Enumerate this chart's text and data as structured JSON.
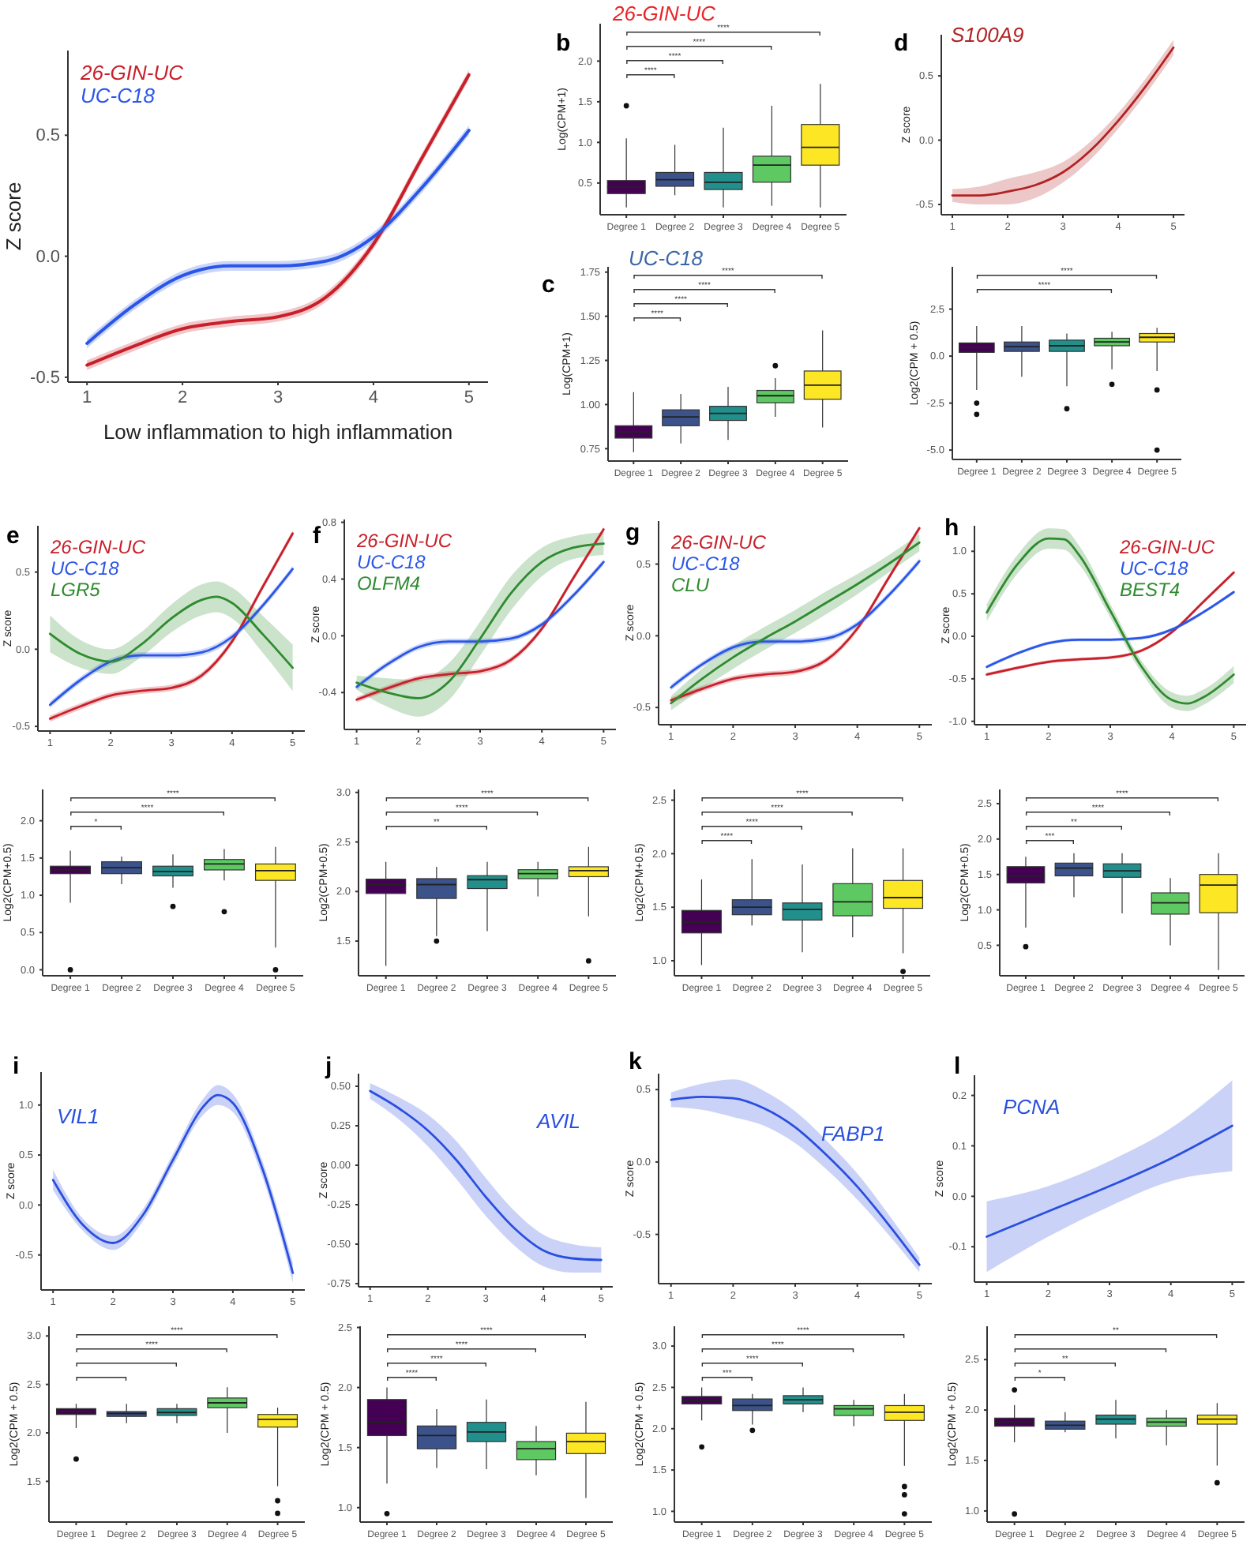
{
  "chart_data": [
    {
      "type": "line",
      "xlabel": "Low inflammation to high inflammation",
      "ylabel": "Z score",
      "legend": "top left",
      "x": [
        1,
        1.5,
        2,
        2.5,
        3,
        3.5,
        4,
        4.5,
        5
      ],
      "xlim": [
        0.8,
        5.2
      ],
      "ylim": [
        -0.52,
        0.85
      ],
      "xticks": [
        1,
        2,
        3,
        4,
        5
      ],
      "yticks": [
        -0.5,
        {
          "value": 0,
          "label": "0.0"
        },
        0.5
      ],
      "series": [
        {
          "name": "26-GIN-UC",
          "color": "#c8202a",
          "values": [
            -0.45,
            -0.37,
            -0.3,
            -0.27,
            -0.25,
            -0.17,
            0.05,
            0.4,
            0.75
          ],
          "lower": [
            -0.47,
            -0.39,
            -0.32,
            -0.29,
            -0.27,
            -0.19,
            0.03,
            0.38,
            0.73
          ],
          "upper": [
            -0.43,
            -0.35,
            -0.28,
            -0.25,
            -0.23,
            -0.15,
            0.07,
            0.42,
            0.77
          ]
        },
        {
          "name": "UC-C18",
          "color": "#2a56e8",
          "values": [
            -0.36,
            -0.2,
            -0.08,
            -0.04,
            -0.04,
            -0.02,
            0.08,
            0.28,
            0.52
          ],
          "lower": [
            -0.38,
            -0.22,
            -0.1,
            -0.06,
            -0.06,
            -0.04,
            0.06,
            0.26,
            0.5
          ],
          "upper": [
            -0.34,
            -0.18,
            -0.06,
            -0.02,
            -0.02,
            0,
            0.1,
            0.3,
            0.54
          ]
        }
      ]
    },
    {
      "type": "box",
      "title": "26-GIN-UC",
      "ylabel": "Log(CPM+1)",
      "categories": [
        "Degree 1",
        "Degree 2",
        "Degree 3",
        "Degree 4",
        "Degree 5"
      ],
      "colors": [
        "#440154",
        "#3b528b",
        "#21908c",
        "#5ec962",
        "#fde725"
      ],
      "ylim": [
        0.11,
        2.46
      ],
      "yticks": [
        0.5,
        {
          "value": 1,
          "label": "1.0"
        },
        1.5,
        {
          "value": 2,
          "label": "2.0"
        }
      ],
      "boxes": [
        {
          "low": 0.2,
          "q1": 0.37,
          "median": 0.45,
          "q3": 0.53,
          "high": 1.05,
          "outliers": [
            1.45
          ]
        },
        {
          "low": 0.35,
          "q1": 0.46,
          "median": 0.54,
          "q3": 0.63,
          "high": 0.97
        },
        {
          "low": 0.2,
          "q1": 0.42,
          "median": 0.51,
          "q3": 0.63,
          "high": 1.18
        },
        {
          "low": 0.22,
          "q1": 0.51,
          "median": 0.72,
          "q3": 0.83,
          "high": 1.45
        },
        {
          "low": 0.2,
          "q1": 0.72,
          "median": 0.94,
          "q3": 1.22,
          "high": 1.72
        }
      ],
      "annotations": [
        "b",
        "****",
        "****",
        "****",
        "****"
      ]
    },
    {
      "type": "box",
      "title": "UC-C18",
      "ylabel": "Log(CPM+1)",
      "categories": [
        "Degree 1",
        "Degree 2",
        "Degree 3",
        "Degree 4",
        "Degree 5"
      ],
      "colors": [
        "#440154",
        "#3b528b",
        "#21908c",
        "#5ec962",
        "#fde725"
      ],
      "ylim": [
        0.68,
        1.78
      ],
      "yticks": [
        0.75,
        {
          "value": 1,
          "label": "1.00"
        },
        1.25,
        {
          "value": 1.5,
          "label": "1.50"
        },
        1.75
      ],
      "boxes": [
        {
          "low": 0.73,
          "q1": 0.81,
          "median": 0.845,
          "q3": 0.88,
          "high": 1.07
        },
        {
          "low": 0.78,
          "q1": 0.88,
          "median": 0.93,
          "q3": 0.97,
          "high": 1.06
        },
        {
          "low": 0.8,
          "q1": 0.91,
          "median": 0.95,
          "q3": 0.99,
          "high": 1.1
        },
        {
          "low": 0.93,
          "q1": 1.01,
          "median": 1.05,
          "q3": 1.08,
          "high": 1.15,
          "outliers": [
            1.22
          ]
        },
        {
          "low": 0.87,
          "q1": 1.03,
          "median": 1.11,
          "q3": 1.19,
          "high": 1.42
        }
      ],
      "annotations": [
        "c",
        "****",
        "****",
        "****",
        "****"
      ]
    },
    {
      "type": "line",
      "ylabel": "Z score",
      "legend": "top left",
      "x": [
        1,
        1.5,
        2,
        2.5,
        3,
        3.5,
        4,
        4.5,
        5
      ],
      "xlim": [
        0.8,
        5.2
      ],
      "ylim": [
        -0.58,
        0.82
      ],
      "xticks": [
        1,
        2,
        3,
        4,
        5
      ],
      "yticks": [
        -0.5,
        {
          "value": 0,
          "label": "0.0"
        },
        0.5
      ],
      "series": [
        {
          "name": "S100A9",
          "color": "#b22222",
          "values": [
            -0.43,
            -0.43,
            -0.4,
            -0.35,
            -0.25,
            -0.08,
            0.15,
            0.42,
            0.72
          ],
          "lower": [
            -0.48,
            -0.5,
            -0.5,
            -0.45,
            -0.33,
            -0.15,
            0.09,
            0.36,
            0.66
          ],
          "upper": [
            -0.38,
            -0.36,
            -0.3,
            -0.25,
            -0.17,
            -0.01,
            0.21,
            0.48,
            0.78
          ]
        }
      ],
      "annotations": [
        "d"
      ]
    },
    {
      "type": "box",
      "ylabel": "Log2(CPM + 0.5)",
      "categories": [
        "Degree 1",
        "Degree 2",
        "Degree 3",
        "Degree 4",
        "Degree 5"
      ],
      "colors": [
        "#440154",
        "#3b528b",
        "#21908c",
        "#5ec962",
        "#fde725"
      ],
      "ylim": [
        -5.5,
        4.75
      ],
      "yticks": [
        {
          "value": -5,
          "label": "-5.0"
        },
        -2.5,
        {
          "value": 0,
          "label": "0.0"
        },
        2.5
      ],
      "boxes": [
        {
          "low": -1.8,
          "q1": 0.2,
          "median": 0.45,
          "q3": 0.7,
          "high": 1.6,
          "outliers": [
            -3.1,
            -2.5
          ]
        },
        {
          "low": -1.1,
          "q1": 0.25,
          "median": 0.5,
          "q3": 0.75,
          "high": 1.6
        },
        {
          "low": -1.6,
          "q1": 0.25,
          "median": 0.55,
          "q3": 0.85,
          "high": 1.2,
          "outliers": [
            -2.8
          ]
        },
        {
          "low": -0.7,
          "q1": 0.55,
          "median": 0.75,
          "q3": 0.95,
          "high": 1.3,
          "outliers": [
            -1.5
          ]
        },
        {
          "low": -0.8,
          "q1": 0.75,
          "median": 1,
          "q3": 1.2,
          "high": 1.5,
          "outliers": [
            -1.8,
            -5
          ]
        }
      ],
      "annotations": [
        "****",
        "****"
      ]
    },
    {
      "type": "line",
      "ylabel": "Z score",
      "legend": "top left",
      "x": [
        1,
        1.5,
        2,
        2.5,
        3,
        3.5,
        4,
        4.5,
        5
      ],
      "xlim": [
        0.8,
        5.2
      ],
      "ylim": [
        -0.53,
        0.8
      ],
      "xticks": [
        1,
        2,
        3,
        4,
        5
      ],
      "yticks": [
        -0.5,
        {
          "value": 0,
          "label": "0.0"
        },
        0.5
      ],
      "series": [
        {
          "name": "26-GIN-UC",
          "color": "#c8202a",
          "values": [
            -0.45,
            -0.37,
            -0.3,
            -0.27,
            -0.25,
            -0.17,
            0.05,
            0.4,
            0.75
          ],
          "lower": [
            -0.47,
            -0.39,
            -0.32,
            -0.29,
            -0.27,
            -0.19,
            0.03,
            0.38,
            0.73
          ],
          "upper": [
            -0.43,
            -0.35,
            -0.28,
            -0.25,
            -0.23,
            -0.15,
            0.07,
            0.42,
            0.77
          ]
        },
        {
          "name": "UC-C18",
          "color": "#2a56e8",
          "values": [
            -0.36,
            -0.2,
            -0.08,
            -0.04,
            -0.04,
            -0.02,
            0.08,
            0.28,
            0.52
          ],
          "lower": [
            -0.38,
            -0.22,
            -0.1,
            -0.06,
            -0.06,
            -0.04,
            0.06,
            0.26,
            0.5
          ],
          "upper": [
            -0.34,
            -0.18,
            -0.06,
            -0.02,
            -0.02,
            0,
            0.1,
            0.3,
            0.54
          ]
        },
        {
          "name": "LGR5",
          "color": "#2e8b2e",
          "x": [
            1,
            1.5,
            2,
            2.5,
            3,
            3.5,
            3.75,
            4,
            4.5,
            5
          ],
          "values": [
            0.1,
            -0.03,
            -0.08,
            0.03,
            0.2,
            0.32,
            0.34,
            0.3,
            0.1,
            -0.12
          ],
          "lower": [
            -0.02,
            -0.12,
            -0.16,
            -0.05,
            0.11,
            0.22,
            0.24,
            0.2,
            -0.02,
            -0.27
          ],
          "upper": [
            0.22,
            0.06,
            0,
            0.11,
            0.29,
            0.42,
            0.44,
            0.4,
            0.22,
            0.03
          ]
        }
      ],
      "annotations": [
        "e"
      ]
    },
    {
      "type": "box",
      "ylabel": "Log2(CPM+0.5)",
      "categories": [
        "Degree 1",
        "Degree 2",
        "Degree 3",
        "Degree 4",
        "Degree 5"
      ],
      "colors": [
        "#440154",
        "#3b528b",
        "#21908c",
        "#5ec962",
        "#fde725"
      ],
      "ylim": [
        -0.08,
        2.42
      ],
      "yticks": [
        {
          "value": 0,
          "label": "0.0"
        },
        0.5,
        {
          "value": 1,
          "label": "1.0"
        },
        1.5,
        {
          "value": 2,
          "label": "2.0"
        }
      ],
      "boxes": [
        {
          "low": 0.9,
          "q1": 1.29,
          "median": 1.34,
          "q3": 1.39,
          "high": 1.6,
          "outliers": [
            0
          ]
        },
        {
          "low": 1.15,
          "q1": 1.29,
          "median": 1.37,
          "q3": 1.45,
          "high": 1.52
        },
        {
          "low": 1.1,
          "q1": 1.26,
          "median": 1.32,
          "q3": 1.39,
          "high": 1.55,
          "outliers": [
            0.85
          ]
        },
        {
          "low": 1.2,
          "q1": 1.34,
          "median": 1.42,
          "q3": 1.48,
          "high": 1.62,
          "outliers": [
            0.78
          ]
        },
        {
          "low": 0.3,
          "q1": 1.2,
          "median": 1.33,
          "q3": 1.42,
          "high": 1.65,
          "outliers": [
            0
          ]
        }
      ],
      "annotations": [
        "*",
        "****",
        "****"
      ]
    },
    {
      "type": "line",
      "ylabel": "Z score",
      "legend": "top left",
      "x": [
        1,
        1.5,
        2,
        2.5,
        3,
        3.5,
        4,
        4.5,
        5
      ],
      "xlim": [
        0.8,
        5.2
      ],
      "ylim": [
        -0.66,
        0.82
      ],
      "xticks": [
        1,
        2,
        3,
        4,
        5
      ],
      "yticks": [
        -0.4,
        {
          "value": 0,
          "label": "0.0"
        },
        0.4,
        0.8
      ],
      "series": [
        {
          "name": "26-GIN-UC",
          "color": "#c8202a",
          "values": [
            -0.45,
            -0.37,
            -0.3,
            -0.27,
            -0.25,
            -0.17,
            0.05,
            0.4,
            0.75
          ],
          "lower": [
            -0.47,
            -0.39,
            -0.32,
            -0.29,
            -0.27,
            -0.19,
            0.03,
            0.38,
            0.73
          ],
          "upper": [
            -0.43,
            -0.35,
            -0.28,
            -0.25,
            -0.23,
            -0.15,
            0.07,
            0.42,
            0.77
          ]
        },
        {
          "name": "UC-C18",
          "color": "#2a56e8",
          "values": [
            -0.36,
            -0.2,
            -0.08,
            -0.04,
            -0.04,
            -0.02,
            0.08,
            0.28,
            0.52
          ],
          "lower": [
            -0.38,
            -0.22,
            -0.1,
            -0.06,
            -0.06,
            -0.04,
            0.06,
            0.26,
            0.5
          ],
          "upper": [
            -0.34,
            -0.18,
            -0.06,
            -0.02,
            -0.02,
            0,
            0.1,
            0.3,
            0.54
          ]
        },
        {
          "name": "OLFM4",
          "color": "#2e8b2e",
          "values": [
            -0.33,
            -0.4,
            -0.44,
            -0.32,
            -0.02,
            0.3,
            0.52,
            0.62,
            0.65
          ],
          "lower": [
            -0.38,
            -0.5,
            -0.57,
            -0.45,
            -0.14,
            0.18,
            0.42,
            0.54,
            0.57
          ],
          "upper": [
            -0.28,
            -0.3,
            -0.31,
            -0.19,
            0.1,
            0.42,
            0.62,
            0.7,
            0.73
          ]
        }
      ],
      "annotations": [
        "f"
      ]
    },
    {
      "type": "box",
      "ylabel": "Log2(CPM+0.5)",
      "categories": [
        "Degree 1",
        "Degree 2",
        "Degree 3",
        "Degree 4",
        "Degree 5"
      ],
      "colors": [
        "#440154",
        "#3b528b",
        "#21908c",
        "#5ec962",
        "#fde725"
      ],
      "ylim": [
        1.15,
        3.03
      ],
      "yticks": [
        1.5,
        {
          "value": 2,
          "label": "2.0"
        },
        2.5,
        {
          "value": 3,
          "label": "3.0"
        }
      ],
      "boxes": [
        {
          "low": 1.25,
          "q1": 1.98,
          "median": 2.07,
          "q3": 2.125,
          "high": 2.3
        },
        {
          "low": 1.55,
          "q1": 1.93,
          "median": 2.07,
          "q3": 2.13,
          "high": 2.25,
          "outliers": [
            1.5
          ]
        },
        {
          "low": 1.6,
          "q1": 2.03,
          "median": 2.12,
          "q3": 2.16,
          "high": 2.3
        },
        {
          "low": 1.95,
          "q1": 2.13,
          "median": 2.18,
          "q3": 2.22,
          "high": 2.3
        },
        {
          "low": 1.75,
          "q1": 2.15,
          "median": 2.21,
          "q3": 2.25,
          "high": 2.45,
          "outliers": [
            1.3
          ]
        }
      ],
      "annotations": [
        "**",
        "****",
        "****"
      ]
    },
    {
      "type": "line",
      "ylabel": "Z score",
      "legend": "top left",
      "x": [
        1,
        1.5,
        2,
        2.5,
        3,
        3.5,
        4,
        4.5,
        5
      ],
      "xlim": [
        0.8,
        5.2
      ],
      "ylim": [
        -0.62,
        0.8
      ],
      "xticks": [
        1,
        2,
        3,
        4,
        5
      ],
      "yticks": [
        -0.5,
        {
          "value": 0,
          "label": "0.0"
        },
        0.5
      ],
      "series": [
        {
          "name": "26-GIN-UC",
          "color": "#c8202a",
          "values": [
            -0.45,
            -0.37,
            -0.3,
            -0.27,
            -0.25,
            -0.17,
            0.05,
            0.4,
            0.75
          ],
          "lower": [
            -0.47,
            -0.39,
            -0.32,
            -0.29,
            -0.27,
            -0.19,
            0.03,
            0.38,
            0.73
          ],
          "upper": [
            -0.43,
            -0.35,
            -0.28,
            -0.25,
            -0.23,
            -0.15,
            0.07,
            0.42,
            0.77
          ]
        },
        {
          "name": "UC-C18",
          "color": "#2a56e8",
          "values": [
            -0.36,
            -0.2,
            -0.08,
            -0.04,
            -0.04,
            -0.02,
            0.08,
            0.28,
            0.52
          ],
          "lower": [
            -0.38,
            -0.22,
            -0.1,
            -0.06,
            -0.06,
            -0.04,
            0.06,
            0.26,
            0.5
          ],
          "upper": [
            -0.34,
            -0.18,
            -0.06,
            -0.02,
            -0.02,
            0,
            0.1,
            0.3,
            0.54
          ]
        },
        {
          "name": "CLU",
          "color": "#2e8b2e",
          "values": [
            -0.47,
            -0.3,
            -0.15,
            -0.02,
            0.1,
            0.23,
            0.36,
            0.5,
            0.65
          ],
          "lower": [
            -0.52,
            -0.37,
            -0.23,
            -0.1,
            0.02,
            0.15,
            0.29,
            0.44,
            0.59
          ],
          "upper": [
            -0.42,
            -0.23,
            -0.07,
            0.06,
            0.18,
            0.31,
            0.43,
            0.56,
            0.71
          ]
        }
      ],
      "annotations": [
        "g"
      ]
    },
    {
      "type": "box",
      "ylabel": "Log2(CPM+0.5)",
      "categories": [
        "Degree 1",
        "Degree 2",
        "Degree 3",
        "Degree 4",
        "Degree 5"
      ],
      "colors": [
        "#440154",
        "#3b528b",
        "#21908c",
        "#5ec962",
        "#fde725"
      ],
      "ylim": [
        0.86,
        2.6
      ],
      "yticks": [
        {
          "value": 1,
          "label": "1.0"
        },
        1.5,
        {
          "value": 2,
          "label": "2.0"
        },
        2.5
      ],
      "boxes": [
        {
          "low": 0.96,
          "q1": 1.26,
          "median": 1.36,
          "q3": 1.47,
          "high": 1.76
        },
        {
          "low": 1.33,
          "q1": 1.43,
          "median": 1.5,
          "q3": 1.57,
          "high": 1.95
        },
        {
          "low": 1.08,
          "q1": 1.38,
          "median": 1.48,
          "q3": 1.54,
          "high": 1.9
        },
        {
          "low": 1.22,
          "q1": 1.42,
          "median": 1.55,
          "q3": 1.72,
          "high": 2.05
        },
        {
          "low": 1.07,
          "q1": 1.49,
          "median": 1.59,
          "q3": 1.75,
          "high": 2.05,
          "outliers": [
            0.9
          ]
        }
      ],
      "annotations": [
        "****",
        "****",
        "****",
        "****"
      ]
    },
    {
      "type": "line",
      "ylabel": "Z score",
      "legend": "top right",
      "x": [
        1,
        1.5,
        2,
        2.5,
        3,
        3.5,
        4,
        4.5,
        5
      ],
      "xlim": [
        0.8,
        5.2
      ],
      "ylim": [
        -1.04,
        1.3
      ],
      "xticks": [
        1,
        2,
        3,
        4,
        5
      ],
      "yticks": [
        {
          "value": -1,
          "label": "-1.0"
        },
        -0.5,
        {
          "value": 0,
          "label": "0.0"
        },
        0.5,
        {
          "value": 1,
          "label": "1.0"
        }
      ],
      "series": [
        {
          "name": "26-GIN-UC",
          "color": "#c8202a",
          "values": [
            -0.45,
            -0.37,
            -0.3,
            -0.27,
            -0.25,
            -0.17,
            0.05,
            0.4,
            0.75
          ],
          "lower": [
            -0.47,
            -0.39,
            -0.32,
            -0.29,
            -0.27,
            -0.19,
            0.03,
            0.38,
            0.73
          ],
          "upper": [
            -0.43,
            -0.35,
            -0.28,
            -0.25,
            -0.23,
            -0.15,
            0.07,
            0.42,
            0.77
          ]
        },
        {
          "name": "UC-C18",
          "color": "#2a56e8",
          "values": [
            -0.36,
            -0.2,
            -0.08,
            -0.04,
            -0.04,
            -0.02,
            0.08,
            0.28,
            0.52
          ],
          "lower": [
            -0.38,
            -0.22,
            -0.1,
            -0.06,
            -0.06,
            -0.04,
            0.06,
            0.26,
            0.5
          ],
          "upper": [
            -0.34,
            -0.18,
            -0.06,
            -0.02,
            -0.02,
            0,
            0.1,
            0.3,
            0.54
          ]
        },
        {
          "name": "BEST4",
          "color": "#2e8b2e",
          "x": [
            1,
            1.5,
            2,
            2.25,
            2.5,
            3,
            3.5,
            4,
            4.25,
            4.5,
            5
          ],
          "values": [
            0.28,
            0.85,
            1.15,
            1.14,
            0.95,
            0.3,
            -0.35,
            -0.75,
            -0.79,
            -0.72,
            -0.45
          ],
          "lower": [
            0.18,
            0.74,
            1.03,
            1.02,
            0.84,
            0.22,
            -0.42,
            -0.84,
            -0.88,
            -0.81,
            -0.55
          ],
          "upper": [
            0.38,
            0.96,
            1.27,
            1.26,
            1.06,
            0.38,
            -0.28,
            -0.66,
            -0.7,
            -0.63,
            -0.35
          ]
        }
      ],
      "annotations": [
        "h"
      ]
    },
    {
      "type": "box",
      "ylabel": "Log2(CPM+0.5)",
      "categories": [
        "Degree 1",
        "Degree 2",
        "Degree 3",
        "Degree 4",
        "Degree 5"
      ],
      "colors": [
        "#440154",
        "#3b528b",
        "#21908c",
        "#5ec962",
        "#fde725"
      ],
      "ylim": [
        0.07,
        2.7
      ],
      "yticks": [
        0.5,
        {
          "value": 1,
          "label": "1.0"
        },
        1.5,
        {
          "value": 2,
          "label": "2.0"
        },
        2.5
      ],
      "boxes": [
        {
          "low": 0.75,
          "q1": 1.38,
          "median": 1.48,
          "q3": 1.61,
          "high": 1.75,
          "outliers": [
            0.48
          ]
        },
        {
          "low": 1.18,
          "q1": 1.48,
          "median": 1.59,
          "q3": 1.66,
          "high": 1.8
        },
        {
          "low": 0.95,
          "q1": 1.46,
          "median": 1.55,
          "q3": 1.65,
          "high": 1.8
        },
        {
          "low": 0.5,
          "q1": 0.94,
          "median": 1.1,
          "q3": 1.24,
          "high": 1.45
        },
        {
          "low": 0.15,
          "q1": 0.96,
          "median": 1.35,
          "q3": 1.5,
          "high": 1.8
        }
      ],
      "annotations": [
        "***",
        "**",
        "****",
        "****"
      ]
    },
    {
      "type": "line",
      "ylabel": "Z score",
      "legend": "top left",
      "x": [
        1,
        1.5,
        2,
        2.5,
        3,
        3.5,
        3.75,
        4,
        4.5,
        5
      ],
      "xlim": [
        0.8,
        5.2
      ],
      "ylim": [
        -0.85,
        1.33
      ],
      "xticks": [
        1,
        2,
        3,
        4,
        5
      ],
      "yticks": [
        -0.5,
        {
          "value": 0,
          "label": "0.0"
        },
        0.5,
        {
          "value": 1,
          "label": "1.0"
        }
      ],
      "series": [
        {
          "name": "VIL1",
          "color": "#2a4fe0",
          "values": [
            0.25,
            -0.2,
            -0.38,
            -0.1,
            0.45,
            0.98,
            1.1,
            1.02,
            0.35,
            -0.68
          ],
          "lower": [
            0.15,
            -0.26,
            -0.45,
            -0.16,
            0.39,
            0.9,
            1,
            0.93,
            0.27,
            -0.78
          ],
          "upper": [
            0.35,
            -0.14,
            -0.31,
            -0.04,
            0.51,
            1.06,
            1.2,
            1.11,
            0.43,
            -0.58
          ]
        }
      ],
      "annotations": [
        "i"
      ]
    },
    {
      "type": "box",
      "ylabel": "Log2(CPM + 0.5)",
      "categories": [
        "Degree 1",
        "Degree 2",
        "Degree 3",
        "Degree 4",
        "Degree 5"
      ],
      "colors": [
        "#440154",
        "#3b528b",
        "#21908c",
        "#5ec962",
        "#fde725"
      ],
      "ylim": [
        1.08,
        3.1
      ],
      "yticks": [
        1.5,
        {
          "value": 2,
          "label": "2.0"
        },
        2.5,
        {
          "value": 3,
          "label": "3.0"
        }
      ],
      "boxes": [
        {
          "low": 2.05,
          "q1": 2.19,
          "median": 2.22,
          "q3": 2.25,
          "high": 2.3,
          "outliers": [
            1.73
          ]
        },
        {
          "low": 2.1,
          "q1": 2.17,
          "median": 2.2,
          "q3": 2.22,
          "high": 2.3
        },
        {
          "low": 2.1,
          "q1": 2.18,
          "median": 2.21,
          "q3": 2.25,
          "high": 2.3
        },
        {
          "low": 2,
          "q1": 2.26,
          "median": 2.31,
          "q3": 2.36,
          "high": 2.47
        },
        {
          "low": 1.45,
          "q1": 2.06,
          "median": 2.14,
          "q3": 2.19,
          "high": 2.26,
          "outliers": [
            1.3,
            1.17
          ]
        }
      ],
      "annotations": [
        "****",
        "****"
      ]
    },
    {
      "type": "line",
      "ylabel": "Z score",
      "legend": "top right",
      "x": [
        1,
        1.5,
        2,
        2.5,
        3,
        3.5,
        4,
        4.5,
        5
      ],
      "xlim": [
        0.8,
        5.2
      ],
      "ylim": [
        -0.77,
        0.58
      ],
      "xticks": [
        1,
        2,
        3,
        4,
        5
      ],
      "yticks": [
        {
          "value": -0.75,
          "label": "-0.75"
        },
        {
          "value": -0.5,
          "label": "-0.50"
        },
        -0.25,
        {
          "value": 0,
          "label": "0.00"
        },
        0.25,
        {
          "value": 0.5,
          "label": "0.50"
        }
      ],
      "series": [
        {
          "name": "AVIL",
          "color": "#2a4fe0",
          "values": [
            0.47,
            0.36,
            0.22,
            0.03,
            -0.2,
            -0.4,
            -0.54,
            -0.59,
            -0.6
          ],
          "lower": [
            0.42,
            0.29,
            0.12,
            -0.09,
            -0.32,
            -0.51,
            -0.64,
            -0.68,
            -0.68
          ],
          "upper": [
            0.52,
            0.43,
            0.32,
            0.15,
            -0.08,
            -0.29,
            -0.44,
            -0.5,
            -0.52
          ]
        }
      ],
      "annotations": [
        "j"
      ]
    },
    {
      "type": "box",
      "ylabel": "Log2(CPM + 0.5)",
      "categories": [
        "Degree 1",
        "Degree 2",
        "Degree 3",
        "Degree 4",
        "Degree 5"
      ],
      "colors": [
        "#440154",
        "#3b528b",
        "#21908c",
        "#5ec962",
        "#fde725"
      ],
      "ylim": [
        0.88,
        2.51
      ],
      "yticks": [
        {
          "value": 1,
          "label": "1.0"
        },
        1.5,
        {
          "value": 2,
          "label": "2.0"
        },
        2.5
      ],
      "boxes": [
        {
          "low": 1.2,
          "q1": 1.6,
          "median": 1.71,
          "q3": 1.9,
          "high": 2,
          "outliers": [
            0.95
          ]
        },
        {
          "low": 1.33,
          "q1": 1.49,
          "median": 1.6,
          "q3": 1.68,
          "high": 1.82
        },
        {
          "low": 1.32,
          "q1": 1.55,
          "median": 1.63,
          "q3": 1.71,
          "high": 1.9
        },
        {
          "low": 1.27,
          "q1": 1.4,
          "median": 1.49,
          "q3": 1.55,
          "high": 1.68
        },
        {
          "low": 1.08,
          "q1": 1.45,
          "median": 1.55,
          "q3": 1.62,
          "high": 1.88
        }
      ],
      "annotations": [
        "****",
        "****",
        "****",
        "****"
      ]
    },
    {
      "type": "line",
      "ylabel": "Z score",
      "legend": "top right",
      "x": [
        1,
        1.5,
        2,
        2.5,
        3,
        3.5,
        4,
        4.5,
        5
      ],
      "xlim": [
        0.8,
        5.2
      ],
      "ylim": [
        -0.84,
        0.61
      ],
      "xticks": [
        1,
        2,
        3,
        4,
        5
      ],
      "yticks": [
        -0.5,
        {
          "value": 0,
          "label": "0.0"
        },
        0.5
      ],
      "series": [
        {
          "name": "FABP1",
          "color": "#2a4fe0",
          "values": [
            0.43,
            0.45,
            0.44,
            0.37,
            0.24,
            0.05,
            -0.17,
            -0.43,
            -0.71
          ],
          "lower": [
            0.38,
            0.36,
            0.31,
            0.25,
            0.13,
            -0.05,
            -0.26,
            -0.5,
            -0.76
          ],
          "upper": [
            0.48,
            0.54,
            0.57,
            0.49,
            0.35,
            0.15,
            -0.08,
            -0.36,
            -0.66
          ]
        }
      ],
      "annotations": [
        "k"
      ]
    },
    {
      "type": "box",
      "ylabel": "Log2(CPM + 0.5)",
      "categories": [
        "Degree 1",
        "Degree 2",
        "Degree 3",
        "Degree 4",
        "Degree 5"
      ],
      "colors": [
        "#440154",
        "#3b528b",
        "#21908c",
        "#5ec962",
        "#fde725"
      ],
      "ylim": [
        0.87,
        3.24
      ],
      "yticks": [
        {
          "value": 1,
          "label": "1.0"
        },
        1.5,
        {
          "value": 2,
          "label": "2.0"
        },
        2.5,
        {
          "value": 3,
          "label": "3.0"
        }
      ],
      "boxes": [
        {
          "low": 2.1,
          "q1": 2.3,
          "median": 2.34,
          "q3": 2.39,
          "high": 2.5,
          "outliers": [
            1.78
          ]
        },
        {
          "low": 2.05,
          "q1": 2.22,
          "median": 2.28,
          "q3": 2.36,
          "high": 2.42,
          "outliers": [
            1.98
          ]
        },
        {
          "low": 2.2,
          "q1": 2.3,
          "median": 2.35,
          "q3": 2.4,
          "high": 2.5
        },
        {
          "low": 2.03,
          "q1": 2.16,
          "median": 2.24,
          "q3": 2.28,
          "high": 2.35
        },
        {
          "low": 1.55,
          "q1": 2.1,
          "median": 2.2,
          "q3": 2.28,
          "high": 2.42,
          "outliers": [
            1.3,
            1.2,
            0.97
          ]
        }
      ],
      "annotations": [
        "***",
        "****",
        "****",
        "****"
      ]
    },
    {
      "type": "line",
      "ylabel": "Z score",
      "legend": "top left",
      "x": [
        1,
        2,
        3,
        4,
        5
      ],
      "xlim": [
        0.8,
        5.2
      ],
      "ylim": [
        -0.17,
        0.24
      ],
      "xticks": [
        1,
        2,
        3,
        4,
        5
      ],
      "yticks": [
        -0.1,
        {
          "value": 0,
          "label": "0.0"
        },
        0.1,
        0.2
      ],
      "series": [
        {
          "name": "PCNA",
          "color": "#2a4fe0",
          "values": [
            -0.08,
            -0.03,
            0.02,
            0.075,
            0.14
          ],
          "lower": [
            -0.15,
            -0.08,
            -0.02,
            0.03,
            0.05
          ],
          "upper": [
            -0.01,
            0.02,
            0.07,
            0.135,
            0.23
          ]
        }
      ],
      "annotations": [
        "l"
      ]
    },
    {
      "type": "box",
      "ylabel": "Log2(CPM + 0.5)",
      "categories": [
        "Degree 1",
        "Degree 2",
        "Degree 3",
        "Degree 4",
        "Degree 5"
      ],
      "colors": [
        "#440154",
        "#3b528b",
        "#21908c",
        "#5ec962",
        "#fde725"
      ],
      "ylim": [
        0.89,
        2.83
      ],
      "yticks": [
        {
          "value": 1,
          "label": "1.0"
        },
        1.5,
        {
          "value": 2,
          "label": "2.0"
        },
        2.5
      ],
      "boxes": [
        {
          "low": 1.68,
          "q1": 1.84,
          "median": 1.88,
          "q3": 1.92,
          "high": 2.05,
          "outliers": [
            2.2,
            0.97
          ]
        },
        {
          "low": 1.78,
          "q1": 1.81,
          "median": 1.85,
          "q3": 1.89,
          "high": 1.98
        },
        {
          "low": 1.72,
          "q1": 1.86,
          "median": 1.91,
          "q3": 1.95,
          "high": 2.1
        },
        {
          "low": 1.65,
          "q1": 1.84,
          "median": 1.88,
          "q3": 1.92,
          "high": 2
        },
        {
          "low": 1.45,
          "q1": 1.86,
          "median": 1.91,
          "q3": 1.95,
          "high": 2.07,
          "outliers": [
            1.28
          ]
        }
      ],
      "annotations": [
        "*",
        "**",
        "**"
      ]
    }
  ]
}
